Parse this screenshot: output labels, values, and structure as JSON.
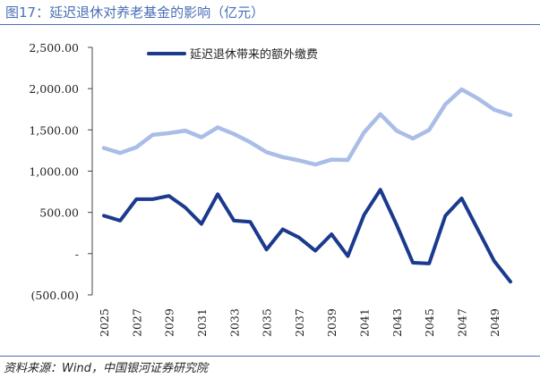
{
  "figure_title": "图17：延迟退休对养老基金的影响（亿元）",
  "source_note": "资料来源：Wind，中国银河证券研究院",
  "colors": {
    "accent": "#4a6fb5",
    "series_main": "#1b3a8e",
    "series_secondary": "#a9bde6",
    "axis": "#444444"
  },
  "chart_data": {
    "type": "line",
    "title": "",
    "xlabel": "",
    "ylabel": "",
    "ylim": [
      -500,
      2500
    ],
    "yticks": [
      2500,
      2000,
      1500,
      1000,
      500,
      0,
      -500
    ],
    "ytick_labels": [
      "2,500.00",
      "2,000.00",
      "1,500.00",
      "1,000.00",
      "500.00",
      "-",
      "(500.00)"
    ],
    "x": [
      2025,
      2026,
      2027,
      2028,
      2029,
      2030,
      2031,
      2032,
      2033,
      2034,
      2035,
      2036,
      2037,
      2038,
      2039,
      2040,
      2041,
      2042,
      2043,
      2044,
      2045,
      2046,
      2047,
      2048,
      2049,
      2050
    ],
    "xtick_labels": [
      "2025",
      "2027",
      "2029",
      "2031",
      "2033",
      "2035",
      "2037",
      "2039",
      "2041",
      "2043",
      "2045",
      "2047",
      "2049"
    ],
    "xtick_values": [
      2025,
      2027,
      2029,
      2031,
      2033,
      2035,
      2037,
      2039,
      2041,
      2043,
      2045,
      2047,
      2049
    ],
    "legend_position": "top",
    "series": [
      {
        "name": "延迟退休带来的额外缴费",
        "show_in_legend": true,
        "values": [
          460,
          400,
          660,
          660,
          700,
          560,
          360,
          720,
          400,
          385,
          50,
          295,
          195,
          35,
          235,
          -30,
          470,
          775,
          350,
          -110,
          -120,
          460,
          670,
          290,
          -90,
          -340
        ]
      },
      {
        "name": "",
        "show_in_legend": false,
        "values": [
          1280,
          1220,
          1290,
          1440,
          1460,
          1490,
          1410,
          1530,
          1450,
          1350,
          1230,
          1170,
          1130,
          1080,
          1140,
          1135,
          1470,
          1690,
          1490,
          1395,
          1500,
          1810,
          1990,
          1880,
          1745,
          1680
        ]
      }
    ]
  }
}
